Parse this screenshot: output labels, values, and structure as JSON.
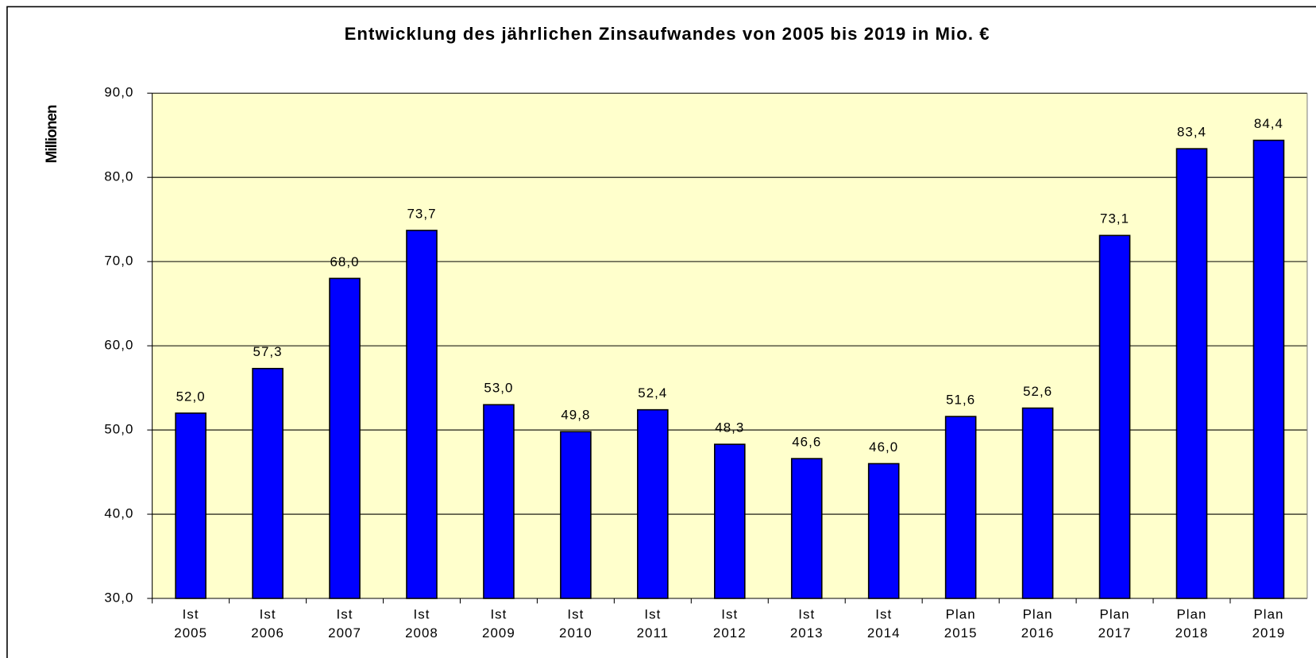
{
  "chart_data": {
    "type": "bar",
    "title": "Entwicklung des jährlichen Zinsaufwandes von 2005 bis 2019 in Mio. €",
    "y_label": "Millionen",
    "categories": [
      [
        "Ist",
        "2005"
      ],
      [
        "Ist",
        "2006"
      ],
      [
        "Ist",
        "2007"
      ],
      [
        "Ist",
        "2008"
      ],
      [
        "Ist",
        "2009"
      ],
      [
        "Ist",
        "2010"
      ],
      [
        "Ist",
        "2011"
      ],
      [
        "Ist",
        "2012"
      ],
      [
        "Ist",
        "2013"
      ],
      [
        "Ist",
        "2014"
      ],
      [
        "Plan",
        "2015"
      ],
      [
        "Plan",
        "2016"
      ],
      [
        "Plan",
        "2017"
      ],
      [
        "Plan",
        "2018"
      ],
      [
        "Plan",
        "2019"
      ]
    ],
    "values": [
      52.0,
      57.3,
      68.0,
      73.7,
      53.0,
      49.8,
      52.4,
      48.3,
      46.6,
      46.0,
      51.6,
      52.6,
      73.1,
      83.4,
      84.4
    ],
    "value_labels": [
      "52,0",
      "57,3",
      "68,0",
      "73,7",
      "53,0",
      "49,8",
      "52,4",
      "48,3",
      "46,6",
      "46,0",
      "51,6",
      "52,6",
      "73,1",
      "83,4",
      "84,4"
    ],
    "color": "#0000ff",
    "ylim": [
      30,
      90
    ],
    "yticks": [
      {
        "value": 30,
        "label": "30,0"
      },
      {
        "value": 40,
        "label": "40,0"
      },
      {
        "value": 50,
        "label": "50,0"
      },
      {
        "value": 60,
        "label": "60,0"
      },
      {
        "value": 70,
        "label": "70,0"
      },
      {
        "value": 80,
        "label": "80,0"
      },
      {
        "value": 90,
        "label": "90,0"
      }
    ],
    "grid": true
  }
}
